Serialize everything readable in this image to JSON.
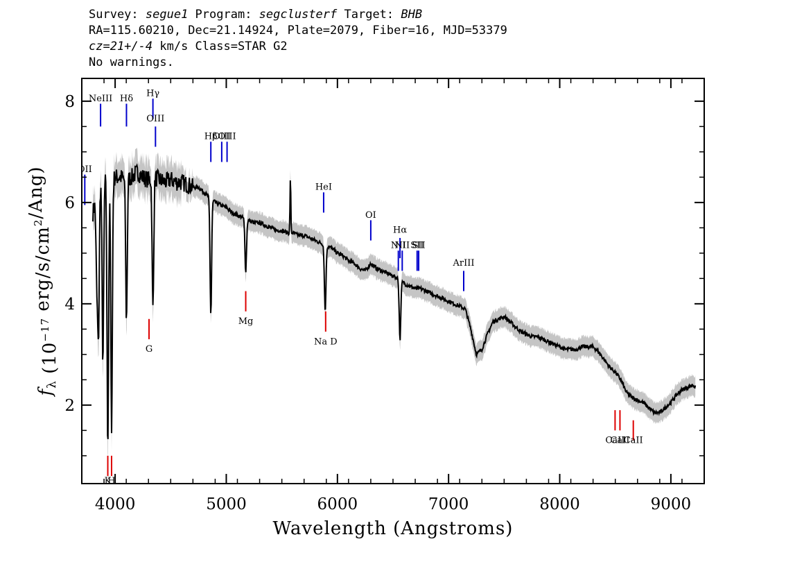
{
  "header": {
    "line1_prefix": "Survey: ",
    "survey": "segue1",
    "program_label": " Program: ",
    "program": "segclusterf",
    "target_label": " Target: ",
    "target": "BHB",
    "line2": "RA=115.60210, Dec=21.14924, Plate=2079, Fiber=16, MJD=53379",
    "cz_value": "cz=21+/-4",
    "line3_rest": " km/s Class=STAR G2",
    "line4": "No warnings."
  },
  "chart_data": {
    "type": "line",
    "xlabel": "Wavelength (Angstroms)",
    "ylabel": "f_λ (10^-17 erg/s/cm^2/Ang)",
    "xlim": [
      3700,
      9300
    ],
    "ylim": [
      0.45,
      8.45
    ],
    "xticks": [
      4000,
      5000,
      6000,
      7000,
      8000,
      9000
    ],
    "yticks": [
      2,
      4,
      6,
      8
    ],
    "colors": {
      "spectrum": "#000000",
      "error_band": "#bbbbbb",
      "emission": "#0000cc",
      "absorption": "#dd0000"
    },
    "series": [
      {
        "x": [
          3800,
          3850,
          3900,
          3950,
          4000,
          4050,
          4100,
          4150,
          4200,
          4250,
          4300,
          4350,
          4400,
          4450,
          4500,
          4550,
          4600,
          4650,
          4700,
          4750,
          4800,
          4850,
          4900,
          4950,
          5000,
          5050,
          5100,
          5150,
          5200,
          5250,
          5300,
          5350,
          5400,
          5450,
          5500,
          5550,
          5600,
          5650,
          5700,
          5750,
          5800,
          5850,
          5900,
          5950,
          6000,
          6050,
          6100,
          6150,
          6200,
          6250,
          6300,
          6350,
          6400,
          6450,
          6500,
          6550,
          6600,
          6650,
          6700,
          6750,
          6800,
          6850,
          6900,
          6950,
          7000,
          7050,
          7100,
          7150,
          7200,
          7250,
          7300,
          7350,
          7400,
          7450,
          7500,
          7550,
          7600,
          7650,
          7700,
          7750,
          7800,
          7850,
          7900,
          7950,
          8000,
          8050,
          8100,
          8150,
          8200,
          8250,
          8300,
          8350,
          8400,
          8450,
          8500,
          8550,
          8600,
          8650,
          8700,
          8750,
          8800,
          8850,
          8900,
          8950,
          9000,
          9050,
          9100,
          9150,
          9200,
          9220
        ],
        "y": [
          5.8,
          6.3,
          6.5,
          6.4,
          6.5,
          6.5,
          6.45,
          6.5,
          6.6,
          6.5,
          6.45,
          6.5,
          6.45,
          6.4,
          6.45,
          6.4,
          6.4,
          6.35,
          6.3,
          6.3,
          6.2,
          6.1,
          6.0,
          5.95,
          5.9,
          5.8,
          5.75,
          5.7,
          5.65,
          5.6,
          5.6,
          5.55,
          5.5,
          5.45,
          5.45,
          5.4,
          5.4,
          5.35,
          5.35,
          5.3,
          5.25,
          5.2,
          5.15,
          5.1,
          5.0,
          4.95,
          4.85,
          4.8,
          4.7,
          4.65,
          4.8,
          4.7,
          4.65,
          4.6,
          4.55,
          4.5,
          4.4,
          4.35,
          4.3,
          4.3,
          4.25,
          4.2,
          4.15,
          4.1,
          4.05,
          4.0,
          3.95,
          3.9,
          3.5,
          3.0,
          3.1,
          3.4,
          3.65,
          3.7,
          3.75,
          3.65,
          3.55,
          3.45,
          3.4,
          3.35,
          3.35,
          3.3,
          3.25,
          3.2,
          3.15,
          3.1,
          3.1,
          3.1,
          3.15,
          3.15,
          3.15,
          3.05,
          2.9,
          2.75,
          2.65,
          2.5,
          2.25,
          2.15,
          2.1,
          2.05,
          1.95,
          1.85,
          1.85,
          1.95,
          2.05,
          2.2,
          2.3,
          2.35,
          2.4,
          2.35
        ]
      }
    ],
    "absorption_dips": [
      {
        "x": 3835,
        "y": 4.5
      },
      {
        "x": 3850,
        "y": 3.4
      },
      {
        "x": 3890,
        "y": 2.9
      },
      {
        "x": 3934,
        "y": 1.25
      },
      {
        "x": 3968,
        "y": 1.6
      },
      {
        "x": 4102,
        "y": 3.7
      },
      {
        "x": 4340,
        "y": 3.9
      },
      {
        "x": 4861,
        "y": 3.8
      },
      {
        "x": 5175,
        "y": 4.65
      },
      {
        "x": 5890,
        "y": 3.85
      },
      {
        "x": 6563,
        "y": 3.3
      }
    ],
    "spikes": [
      {
        "x": 5577,
        "y": 6.5
      }
    ],
    "emission_lines": [
      {
        "label": "OII",
        "x": 3727,
        "y_bottom": 5.95,
        "y_top": 6.55,
        "label_y": 6.6
      },
      {
        "label": "NeIII",
        "x": 3869,
        "y_bottom": 7.5,
        "y_top": 7.95,
        "label_y": 8.0
      },
      {
        "label": "Hδ",
        "x": 4102,
        "y_bottom": 7.5,
        "y_top": 7.95,
        "label_y": 8.0
      },
      {
        "label": "Hγ",
        "x": 4340,
        "y_bottom": 7.65,
        "y_top": 8.05,
        "label_y": 8.1
      },
      {
        "label": "OIII",
        "x": 4363,
        "y_bottom": 7.1,
        "y_top": 7.5,
        "label_y": 7.6
      },
      {
        "label": "Hβ",
        "x": 4861,
        "y_bottom": 6.8,
        "y_top": 7.2,
        "label_y": 7.25
      },
      {
        "label": "OIII",
        "x": 4959,
        "y_bottom": 6.8,
        "y_top": 7.2,
        "label_y": 7.25
      },
      {
        "label": "OIII",
        "x": 5007,
        "y_bottom": 6.8,
        "y_top": 7.2,
        "label_y": 7.25
      },
      {
        "label": "HeI",
        "x": 5876,
        "y_bottom": 5.8,
        "y_top": 6.2,
        "label_y": 6.25
      },
      {
        "label": "OI",
        "x": 6300,
        "y_bottom": 5.25,
        "y_top": 5.65,
        "label_y": 5.7
      },
      {
        "label": "NII",
        "x": 6548,
        "y_bottom": 4.65,
        "y_top": 5.05,
        "label_y": 5.1
      },
      {
        "label": "Hα",
        "x": 6563,
        "y_bottom": 4.9,
        "y_top": 5.3,
        "label_y": 5.4
      },
      {
        "label": "NII",
        "x": 6583,
        "y_bottom": 4.65,
        "y_top": 5.05,
        "label_y": 5.1
      },
      {
        "label": "SII",
        "x": 6717,
        "y_bottom": 4.65,
        "y_top": 5.05,
        "label_y": 5.1
      },
      {
        "label": "SII",
        "x": 6731,
        "y_bottom": 4.65,
        "y_top": 5.05,
        "label_y": 5.1
      },
      {
        "label": "ArIII",
        "x": 7136,
        "y_bottom": 4.25,
        "y_top": 4.65,
        "label_y": 4.75
      }
    ],
    "absorption_lines": [
      {
        "label": "K",
        "x": 3934,
        "y_bottom": 0.6,
        "y_top": 1.0,
        "label_y": 0.45
      },
      {
        "label": "H",
        "x": 3968,
        "y_bottom": 0.6,
        "y_top": 1.0,
        "label_y": 0.45
      },
      {
        "label": "G",
        "x": 4305,
        "y_bottom": 3.3,
        "y_top": 3.7,
        "label_y": 3.05
      },
      {
        "label": "Mg",
        "x": 5175,
        "y_bottom": 3.85,
        "y_top": 4.25,
        "label_y": 3.6
      },
      {
        "label": "Na D",
        "x": 5894,
        "y_bottom": 3.45,
        "y_top": 3.85,
        "label_y": 3.2
      },
      {
        "label": "CaII",
        "x": 8498,
        "y_bottom": 1.5,
        "y_top": 1.9,
        "label_y": 1.25
      },
      {
        "label": "CaII",
        "x": 8542,
        "y_bottom": 1.5,
        "y_top": 1.9,
        "label_y": 1.25
      },
      {
        "label": "CaII",
        "x": 8662,
        "y_bottom": 1.3,
        "y_top": 1.7,
        "label_y": 1.25
      }
    ]
  }
}
